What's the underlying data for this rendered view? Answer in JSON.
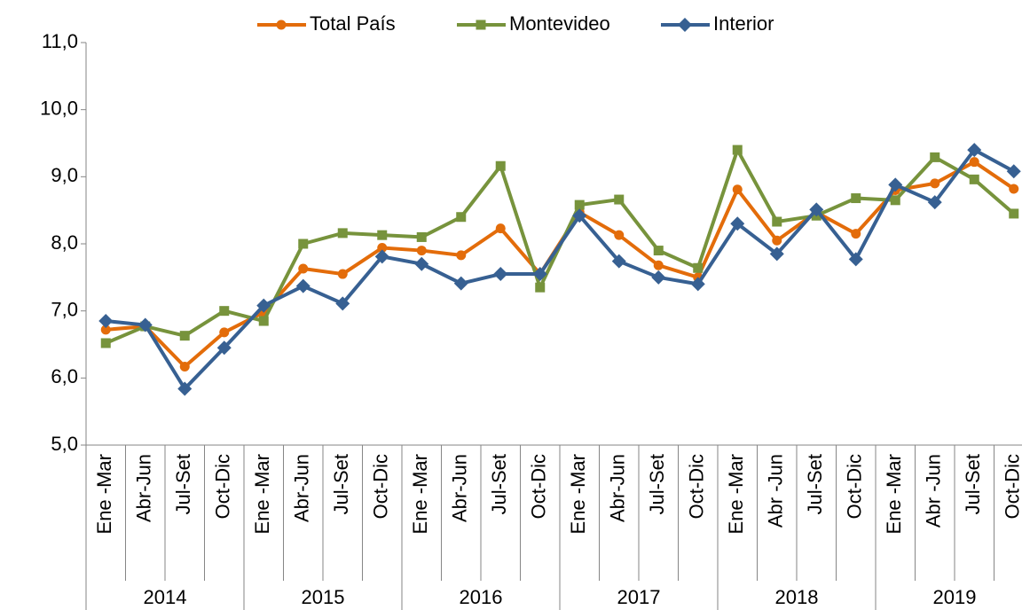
{
  "chart_data": {
    "type": "line",
    "categories": [
      "Ene -Mar",
      "Abr-Jun",
      "Jul-Set",
      "Oct-Dic",
      "Ene -Mar",
      "Abr-Jun",
      "Jul-Set",
      "Oct-Dic",
      "Ene -Mar",
      "Abr-Jun",
      "Jul-Set",
      "Oct-Dic",
      "Ene -Mar",
      "Abr-Jun",
      "Jul-Set",
      "Oct-Dic",
      "Ene -Mar",
      "Abr -Jun",
      "Jul-Set",
      "Oct-Dic",
      "Ene -Mar",
      "Abr -Jun",
      "Jul-Set",
      "Oct-Dic"
    ],
    "groups": [
      "2014",
      "2015",
      "2016",
      "2017",
      "2018",
      "2019"
    ],
    "series": [
      {
        "name": "Total País",
        "color": "#e36c0a",
        "marker": "circle",
        "values": [
          6.72,
          6.77,
          6.17,
          6.68,
          6.98,
          7.63,
          7.55,
          7.94,
          7.9,
          7.83,
          8.23,
          7.55,
          8.47,
          8.13,
          7.68,
          7.5,
          8.81,
          8.05,
          8.47,
          8.15,
          8.8,
          8.9,
          9.22,
          8.82
        ]
      },
      {
        "name": "Montevideo",
        "color": "#77933c",
        "marker": "square",
        "values": [
          6.52,
          6.77,
          6.63,
          7.0,
          6.85,
          8.0,
          8.16,
          8.13,
          8.1,
          8.4,
          9.16,
          7.35,
          8.58,
          8.66,
          7.9,
          7.64,
          9.4,
          8.33,
          8.42,
          8.68,
          8.65,
          9.29,
          8.96,
          8.45
        ]
      },
      {
        "name": "Interior",
        "color": "#376092",
        "marker": "diamond",
        "values": [
          6.85,
          6.79,
          5.84,
          6.45,
          7.08,
          7.37,
          7.11,
          7.81,
          7.7,
          7.41,
          7.55,
          7.55,
          8.42,
          7.74,
          7.5,
          7.4,
          8.3,
          7.85,
          8.51,
          7.77,
          8.88,
          8.62,
          9.4,
          9.08
        ]
      }
    ],
    "ylim": [
      5,
      11
    ],
    "yticks": [
      {
        "value": 5,
        "label": "5,0"
      },
      {
        "value": 6,
        "label": "6,0"
      },
      {
        "value": 7,
        "label": "7,0"
      },
      {
        "value": 8,
        "label": "8,0"
      },
      {
        "value": 9,
        "label": "9,0"
      },
      {
        "value": 10,
        "label": "10,0"
      },
      {
        "value": 11,
        "label": "11,0"
      }
    ],
    "legend": "top"
  }
}
